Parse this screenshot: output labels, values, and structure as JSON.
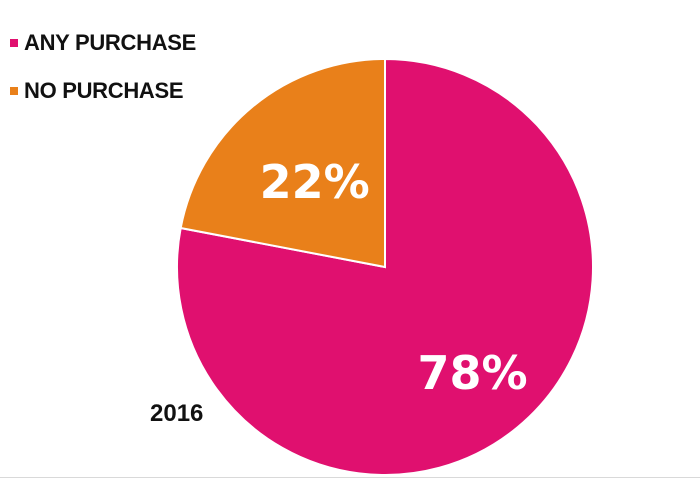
{
  "chart_data": {
    "type": "pie",
    "title": "",
    "year_label": "2016",
    "slices": [
      {
        "label": "ANY PURCHASE",
        "value": 78,
        "display": "78%",
        "color": "#e0106f"
      },
      {
        "label": "NO PURCHASE",
        "value": 22,
        "display": "22%",
        "color": "#e9801a"
      }
    ],
    "legend_position": "top-left",
    "start": "top, clockwise"
  }
}
